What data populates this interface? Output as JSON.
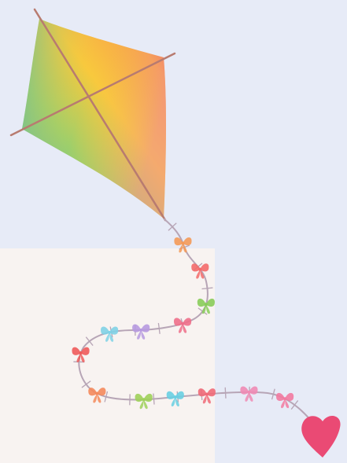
{
  "colors": {
    "sky": "#e7ebf7",
    "paper": "#f8f3f1",
    "kite_yellow": "#f8c93d",
    "kite_orange": "#f7a14a",
    "kite_red": "#ee4a45",
    "kite_pink": "#f08aa0",
    "kite_teal": "#48b8b6",
    "kite_green": "#9fcf6a",
    "spar": "#b87b70",
    "string": "#b7a5b6",
    "heart": "#ea4a74"
  },
  "bows": [
    {
      "color": "#f49a58",
      "name": "orange"
    },
    {
      "color": "#f36a6a",
      "name": "coral"
    },
    {
      "color": "#88cc5a",
      "name": "green"
    },
    {
      "color": "#ee6f8a",
      "name": "rose"
    },
    {
      "color": "#b79ae0",
      "name": "lavender"
    },
    {
      "color": "#7fd2e6",
      "name": "sky-blue"
    },
    {
      "color": "#ee5a5a",
      "name": "red"
    },
    {
      "color": "#f48a5c",
      "name": "orange"
    },
    {
      "color": "#9fd05a",
      "name": "green"
    },
    {
      "color": "#69cfe2",
      "name": "sky-blue"
    },
    {
      "color": "#f06a78",
      "name": "coral"
    },
    {
      "color": "#f08bb4",
      "name": "pink"
    },
    {
      "color": "#f27aa0",
      "name": "pink"
    }
  ],
  "icons": {
    "kite": "kite-icon",
    "bow": "bow-icon",
    "heart": "heart-icon"
  }
}
